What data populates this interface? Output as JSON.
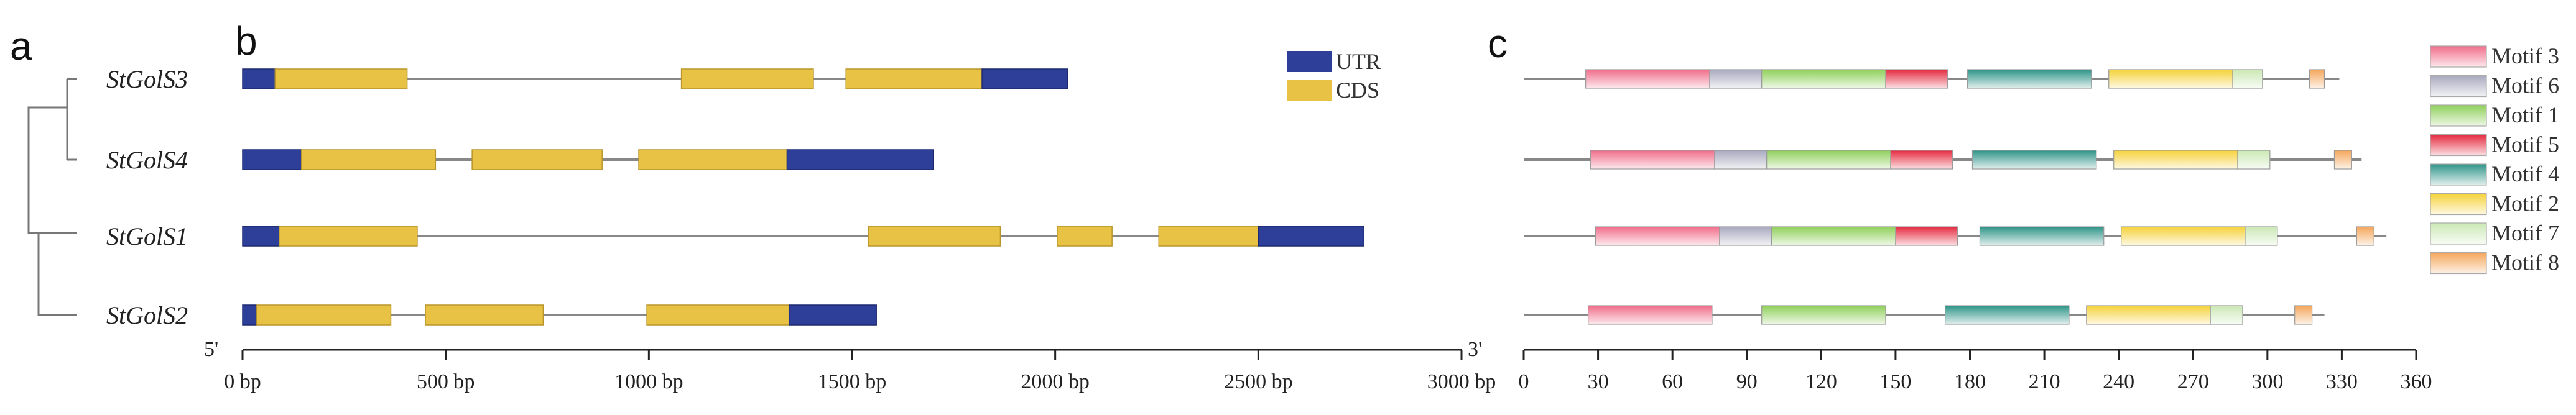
{
  "panels": {
    "a": "a",
    "b": "b",
    "c": "c"
  },
  "genes": [
    "StGolS3",
    "StGolS4",
    "StGolS1",
    "StGolS2"
  ],
  "colors": {
    "utr": "#2e3f9a",
    "cds": "#e7c245",
    "line": "#888888",
    "motif3": "#f06d8a",
    "motif6": "#a9a9bf",
    "motif1": "#8fcf5a",
    "motif5": "#e52a3f",
    "motif4": "#2e9488",
    "motif2": "#f5d23a",
    "motif7": "#cbe8b5",
    "motif8": "#f4a65a"
  },
  "gene_structure": {
    "legend": [
      {
        "key": "utr",
        "label": "UTR"
      },
      {
        "key": "cds",
        "label": "CDS"
      }
    ],
    "axis": {
      "start_label": "5'",
      "end_label": "3'",
      "min": 0,
      "max": 3000,
      "ticks": [
        {
          "value": 0,
          "label": "0 bp"
        },
        {
          "value": 500,
          "label": "500 bp"
        },
        {
          "value": 1000,
          "label": "1000 bp"
        },
        {
          "value": 1500,
          "label": "1500 bp"
        },
        {
          "value": 2000,
          "label": "2000 bp"
        },
        {
          "value": 2500,
          "label": "2500 bp"
        },
        {
          "value": 3000,
          "label": "3000 bp"
        }
      ]
    },
    "rows": [
      {
        "gene": "StGolS3",
        "length": 2030,
        "segments": [
          {
            "type": "utr",
            "start": 0,
            "end": 80
          },
          {
            "type": "cds",
            "start": 80,
            "end": 405
          },
          {
            "type": "cds",
            "start": 1080,
            "end": 1405
          },
          {
            "type": "cds",
            "start": 1485,
            "end": 1820
          },
          {
            "type": "utr",
            "start": 1820,
            "end": 2030
          }
        ]
      },
      {
        "gene": "StGolS4",
        "length": 1700,
        "segments": [
          {
            "type": "utr",
            "start": 0,
            "end": 145
          },
          {
            "type": "cds",
            "start": 145,
            "end": 475
          },
          {
            "type": "cds",
            "start": 565,
            "end": 885
          },
          {
            "type": "cds",
            "start": 975,
            "end": 1340
          },
          {
            "type": "utr",
            "start": 1340,
            "end": 1700
          }
        ]
      },
      {
        "gene": "StGolS1",
        "length": 2760,
        "segments": [
          {
            "type": "utr",
            "start": 0,
            "end": 90
          },
          {
            "type": "cds",
            "start": 90,
            "end": 430
          },
          {
            "type": "cds",
            "start": 1540,
            "end": 1865
          },
          {
            "type": "cds",
            "start": 2005,
            "end": 2140
          },
          {
            "type": "cds",
            "start": 2255,
            "end": 2500
          },
          {
            "type": "utr",
            "start": 2500,
            "end": 2760
          }
        ]
      },
      {
        "gene": "StGolS2",
        "length": 1560,
        "segments": [
          {
            "type": "utr",
            "start": 0,
            "end": 35
          },
          {
            "type": "cds",
            "start": 35,
            "end": 365
          },
          {
            "type": "cds",
            "start": 450,
            "end": 740
          },
          {
            "type": "cds",
            "start": 995,
            "end": 1345
          },
          {
            "type": "utr",
            "start": 1345,
            "end": 1560
          }
        ]
      }
    ]
  },
  "motif_structure": {
    "legend": [
      {
        "key": "motif3",
        "label": "Motif 3"
      },
      {
        "key": "motif6",
        "label": "Motif 6"
      },
      {
        "key": "motif1",
        "label": "Motif 1"
      },
      {
        "key": "motif5",
        "label": "Motif 5"
      },
      {
        "key": "motif4",
        "label": "Motif 4"
      },
      {
        "key": "motif2",
        "label": "Motif 2"
      },
      {
        "key": "motif7",
        "label": "Motif 7"
      },
      {
        "key": "motif8",
        "label": "Motif 8"
      }
    ],
    "axis": {
      "min": 0,
      "max": 360,
      "ticks": [
        0,
        30,
        60,
        90,
        120,
        150,
        180,
        210,
        240,
        270,
        300,
        330,
        360
      ]
    },
    "rows": [
      {
        "gene": "StGolS3",
        "length": 329,
        "motifs": [
          {
            "key": "motif3",
            "start": 25,
            "end": 75
          },
          {
            "key": "motif6",
            "start": 75,
            "end": 96
          },
          {
            "key": "motif1",
            "start": 96,
            "end": 146
          },
          {
            "key": "motif5",
            "start": 146,
            "end": 171
          },
          {
            "key": "motif4",
            "start": 179,
            "end": 229
          },
          {
            "key": "motif2",
            "start": 236,
            "end": 286
          },
          {
            "key": "motif7",
            "start": 286,
            "end": 298
          },
          {
            "key": "motif8",
            "start": 317,
            "end": 323
          }
        ]
      },
      {
        "gene": "StGolS4",
        "length": 338,
        "motifs": [
          {
            "key": "motif3",
            "start": 27,
            "end": 77
          },
          {
            "key": "motif6",
            "start": 77,
            "end": 98
          },
          {
            "key": "motif1",
            "start": 98,
            "end": 148
          },
          {
            "key": "motif5",
            "start": 148,
            "end": 173
          },
          {
            "key": "motif4",
            "start": 181,
            "end": 231
          },
          {
            "key": "motif2",
            "start": 238,
            "end": 288
          },
          {
            "key": "motif7",
            "start": 288,
            "end": 301
          },
          {
            "key": "motif8",
            "start": 327,
            "end": 334
          }
        ]
      },
      {
        "gene": "StGolS1",
        "length": 348,
        "motifs": [
          {
            "key": "motif3",
            "start": 29,
            "end": 79
          },
          {
            "key": "motif6",
            "start": 79,
            "end": 100
          },
          {
            "key": "motif1",
            "start": 100,
            "end": 150
          },
          {
            "key": "motif5",
            "start": 150,
            "end": 175
          },
          {
            "key": "motif4",
            "start": 184,
            "end": 234
          },
          {
            "key": "motif2",
            "start": 241,
            "end": 291
          },
          {
            "key": "motif7",
            "start": 291,
            "end": 304
          },
          {
            "key": "motif8",
            "start": 336,
            "end": 343
          }
        ]
      },
      {
        "gene": "StGolS2",
        "length": 323,
        "motifs": [
          {
            "key": "motif3",
            "start": 26,
            "end": 76
          },
          {
            "key": "motif1",
            "start": 96,
            "end": 146
          },
          {
            "key": "motif4",
            "start": 170,
            "end": 220
          },
          {
            "key": "motif2",
            "start": 227,
            "end": 277
          },
          {
            "key": "motif7",
            "start": 277,
            "end": 290
          },
          {
            "key": "motif8",
            "start": 311,
            "end": 318
          }
        ]
      }
    ]
  }
}
